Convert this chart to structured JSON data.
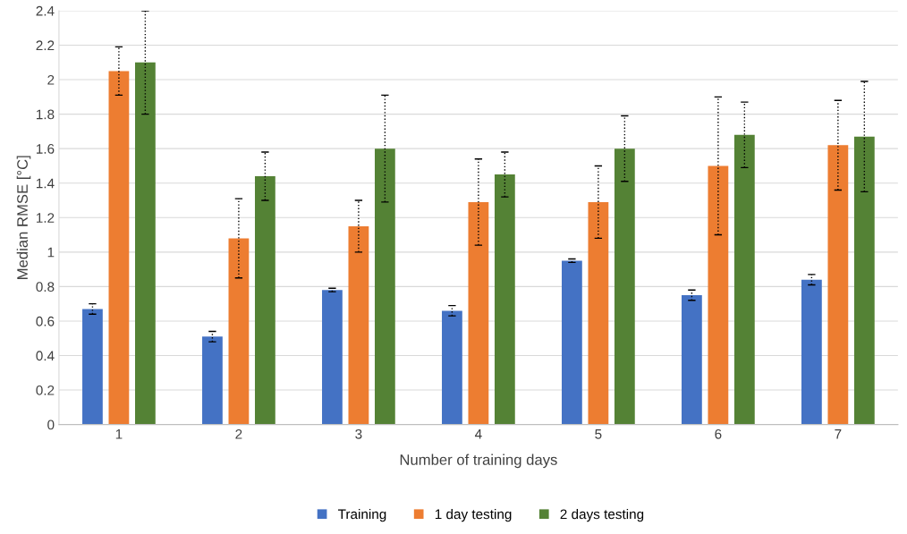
{
  "chart_data": {
    "type": "bar",
    "xlabel": "Number of training days",
    "ylabel": "Median RMSE [°C]",
    "categories": [
      "1",
      "2",
      "3",
      "4",
      "5",
      "6",
      "7"
    ],
    "series": [
      {
        "name": "Training",
        "color": "#4472c4",
        "values": [
          0.67,
          0.51,
          0.78,
          0.66,
          0.95,
          0.75,
          0.84
        ],
        "errors": [
          [
            0.64,
            0.7
          ],
          [
            0.48,
            0.54
          ],
          [
            0.77,
            0.79
          ],
          [
            0.63,
            0.69
          ],
          [
            0.94,
            0.96
          ],
          [
            0.72,
            0.78
          ],
          [
            0.81,
            0.87
          ]
        ]
      },
      {
        "name": "1 day testing",
        "color": "#ed7d31",
        "values": [
          2.05,
          1.08,
          1.15,
          1.29,
          1.29,
          1.5,
          1.62
        ],
        "errors": [
          [
            1.91,
            2.19
          ],
          [
            0.85,
            1.31
          ],
          [
            1.0,
            1.3
          ],
          [
            1.04,
            1.54
          ],
          [
            1.08,
            1.5
          ],
          [
            1.1,
            1.9
          ],
          [
            1.36,
            1.88
          ]
        ]
      },
      {
        "name": "2 days testing",
        "color": "#548235",
        "values": [
          2.1,
          1.44,
          1.6,
          1.45,
          1.6,
          1.68,
          1.67
        ],
        "errors": [
          [
            1.8,
            2.4
          ],
          [
            1.3,
            1.58
          ],
          [
            1.29,
            1.91
          ],
          [
            1.32,
            1.58
          ],
          [
            1.41,
            1.79
          ],
          [
            1.49,
            1.87
          ],
          [
            1.35,
            1.99
          ]
        ]
      }
    ],
    "ylim": [
      0,
      2.4
    ],
    "yticks": [
      0,
      0.2,
      0.4,
      0.6,
      0.8,
      1,
      1.2,
      1.4,
      1.6,
      1.8,
      2,
      2.2,
      2.4
    ],
    "grid": "y",
    "legend": "bottom",
    "line_style": "dotted"
  }
}
